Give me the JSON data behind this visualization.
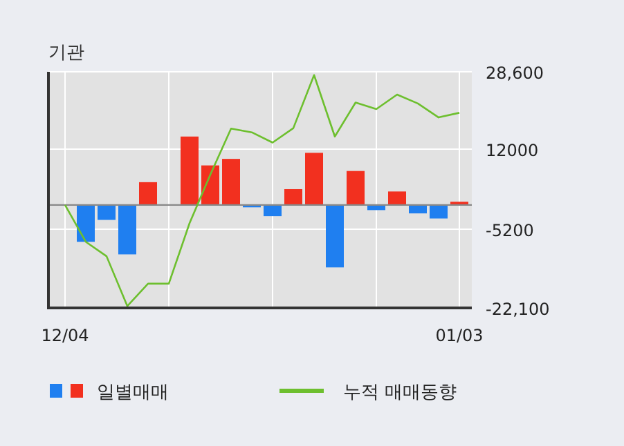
{
  "chart_data": {
    "type": "bar",
    "title": "기관",
    "categories": [
      "12/04",
      null,
      null,
      null,
      null,
      null,
      null,
      null,
      null,
      null,
      null,
      null,
      null,
      null,
      null,
      null,
      null,
      null,
      null,
      "01/03"
    ],
    "series": [
      {
        "name": "일별매매",
        "values": [
          0,
          -7900,
          -3200,
          -10600,
          4900,
          0,
          14700,
          8500,
          9900,
          -500,
          -2400,
          3400,
          11200,
          -13400,
          7300,
          -1100,
          2900,
          -1800,
          -2900,
          700
        ],
        "colors": [
          "#f2301f",
          "#1f7ff0",
          "#1f7ff0",
          "#1f7ff0",
          "#f2301f",
          "#f2301f",
          "#f2301f",
          "#f2301f",
          "#f2301f",
          "#1f7ff0",
          "#1f7ff0",
          "#f2301f",
          "#f2301f",
          "#1f7ff0",
          "#f2301f",
          "#1f7ff0",
          "#f2301f",
          "#1f7ff0",
          "#1f7ff0",
          "#f2301f"
        ]
      },
      {
        "type": "line",
        "name": "누적 매매동향",
        "color": "#6dbf2e",
        "values": [
          0,
          -7900,
          -11000,
          -21700,
          -16900,
          -16900,
          -3900,
          6500,
          16400,
          15600,
          13400,
          16500,
          27900,
          14700,
          22000,
          20600,
          23700,
          21800,
          18800,
          19800
        ]
      }
    ],
    "ylim": [
      -22100,
      28600
    ],
    "yticks": [
      {
        "value": 28600,
        "label": "28,600"
      },
      12000,
      -5200,
      {
        "value": -22100,
        "label": "-22,100"
      }
    ],
    "grid": true,
    "legend": "bottom"
  }
}
